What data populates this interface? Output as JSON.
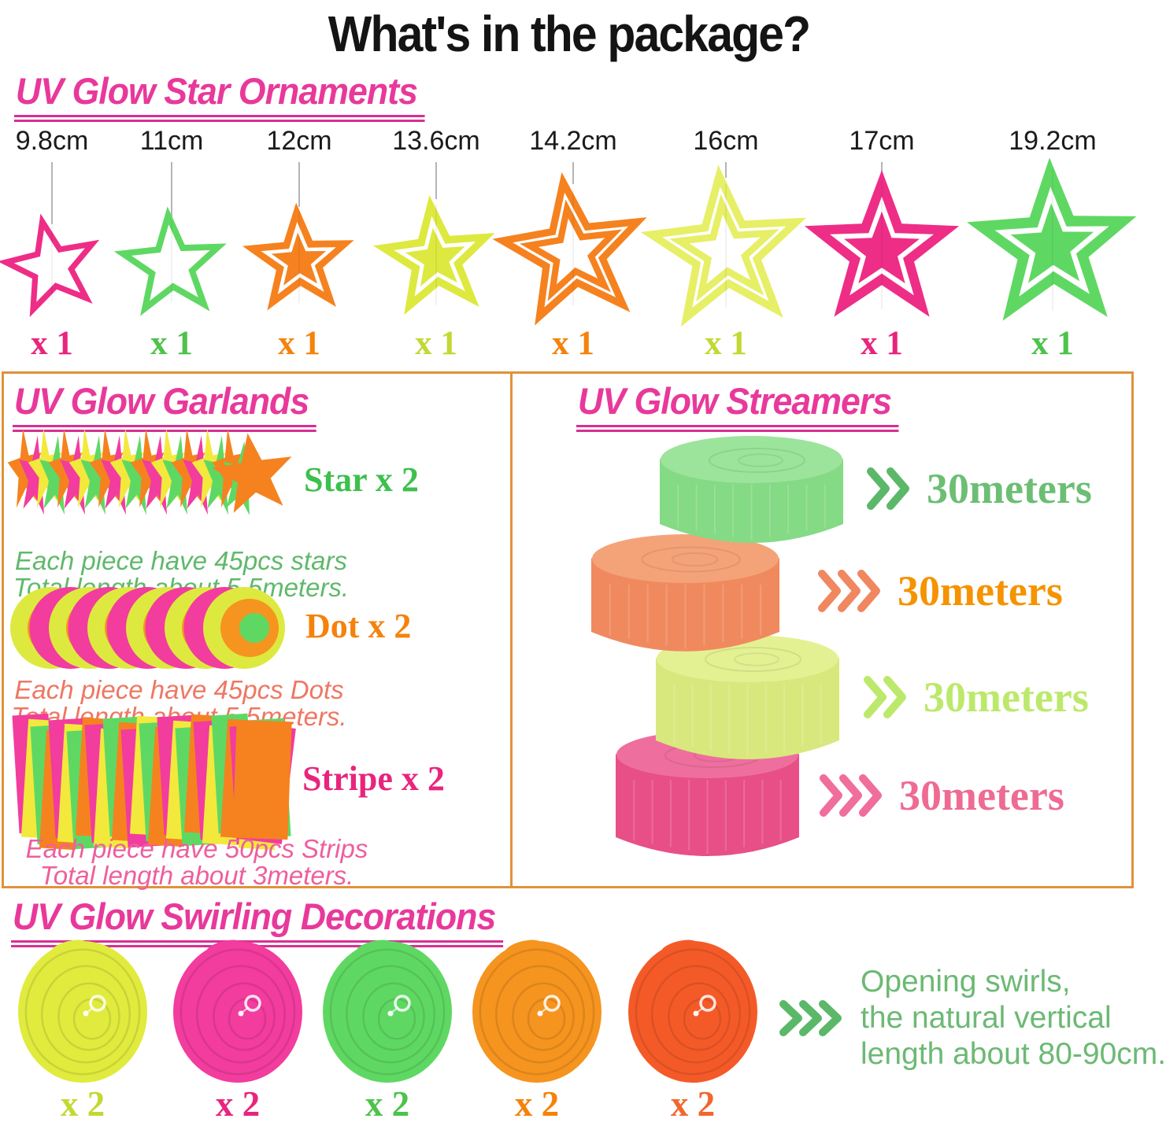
{
  "title": "What's in the package?",
  "accent": {
    "heading_pink": "#E8399B",
    "divider_orange": "#E0923B",
    "string_gray": "#B5B5B5",
    "title_color": "#141414"
  },
  "sections": {
    "ornaments": {
      "heading": "UV Glow Star Ornaments",
      "items": [
        {
          "size": "9.8cm",
          "qty": "x 1",
          "color": "#EE2D87",
          "qty_color": "#E8257D",
          "style": "outline"
        },
        {
          "size": "11cm",
          "qty": "x 1",
          "color": "#5FD863",
          "qty_color": "#4DC34B",
          "style": "outline"
        },
        {
          "size": "12cm",
          "qty": "x 1",
          "color": "#F5821F",
          "qty_color": "#F5820B",
          "style": "cutout"
        },
        {
          "size": "13.6cm",
          "qty": "x 1",
          "color": "#DDE93F",
          "qty_color": "#C3D832",
          "style": "cutout"
        },
        {
          "size": "14.2cm",
          "qty": "x 1",
          "color": "#F5821F",
          "qty_color": "#F5820B",
          "style": "double"
        },
        {
          "size": "16cm",
          "qty": "x 1",
          "color": "#E6EF66",
          "qty_color": "#C3D832",
          "style": "double"
        },
        {
          "size": "17cm",
          "qty": "x 1",
          "color": "#EE2D87",
          "qty_color": "#E8257D",
          "style": "cutout"
        },
        {
          "size": "19.2cm",
          "qty": "x 1",
          "color": "#5FD863",
          "qty_color": "#4DC34B",
          "style": "cutout"
        }
      ]
    },
    "garlands": {
      "heading": "UV Glow Garlands",
      "palette": [
        "#F5821F",
        "#F23C9E",
        "#F2E93C",
        "#5FD863"
      ],
      "dot_colors": {
        "outer": "#DDE93F",
        "ring": "#F5941F",
        "center": "#5FD863",
        "alt": "#F23C9E"
      },
      "items": [
        {
          "type": "star",
          "label": "Star x 2",
          "label_color": "#3DC04D",
          "desc": [
            "Each piece have 45pcs stars",
            "Total length about 5.5meters."
          ],
          "desc_color": "#5FB96B"
        },
        {
          "type": "dot",
          "label": "Dot x 2",
          "label_color": "#F5820B",
          "desc": [
            "Each piece have 45pcs Dots",
            "Total length about 5.5meters."
          ],
          "desc_color": "#EE7763"
        },
        {
          "type": "stripe",
          "label": "Stripe x 2",
          "label_color": "#E8257D",
          "desc": [
            "Each piece have 50pcs Strips",
            "Total length about 3meters."
          ],
          "desc_color": "#EE5F9E"
        }
      ]
    },
    "streamers": {
      "heading": "UV Glow Streamers",
      "items": [
        {
          "length": "30meters",
          "text_color": "#6CBE74",
          "chevron_color": "#5BB869",
          "chevrons": 2,
          "roll_color": "#85DA85",
          "roll_top": "#9CE49C"
        },
        {
          "length": "30meters",
          "text_color": "#F59300",
          "chevron_color": "#F0875F",
          "chevrons": 3,
          "roll_color": "#F08A5E",
          "roll_top": "#F4A379"
        },
        {
          "length": "30meters",
          "text_color": "#BCE96B",
          "chevron_color": "#BCE96B",
          "chevrons": 2,
          "roll_color": "#D9E87D",
          "roll_top": "#E4F193"
        },
        {
          "length": "30meters",
          "text_color": "#EE6B93",
          "chevron_color": "#F06E9C",
          "chevrons": 3,
          "roll_color": "#E84F86",
          "roll_top": "#EE6F9E"
        }
      ]
    },
    "swirls": {
      "heading": "UV Glow Swirling Decorations",
      "items": [
        {
          "qty": "x 2",
          "color": "#E0EB3E",
          "qty_color": "#C3D832"
        },
        {
          "qty": "x 2",
          "color": "#F23C9E",
          "qty_color": "#E8257D"
        },
        {
          "qty": "x 2",
          "color": "#5FD863",
          "qty_color": "#4DC34B"
        },
        {
          "qty": "x 2",
          "color": "#F5941F",
          "qty_color": "#F5820B"
        },
        {
          "qty": "x 2",
          "color": "#F45A28",
          "qty_color": "#F2662F"
        }
      ],
      "note": {
        "lines": [
          "Opening swirls,",
          "the natural vertical",
          "length about 80-90cm."
        ],
        "color": "#6CB974",
        "chevrons": 3,
        "chevron_color": "#5BB869"
      }
    }
  }
}
